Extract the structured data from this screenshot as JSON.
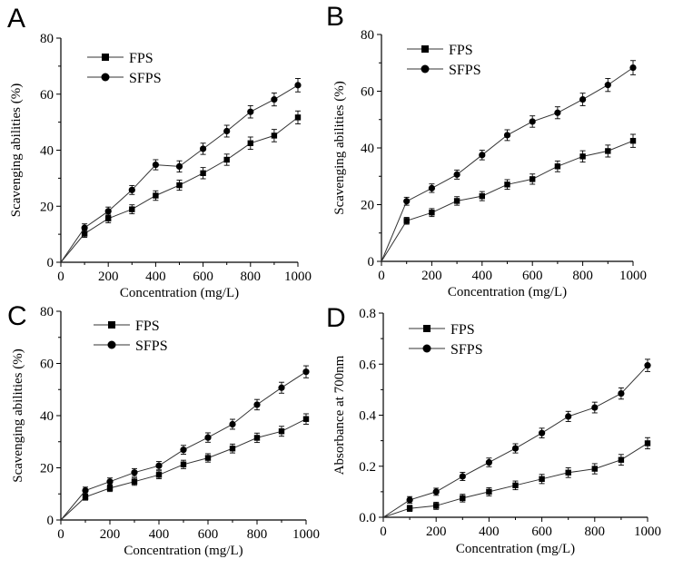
{
  "chart_data": [
    {
      "type": "line",
      "panel": "A",
      "title": "",
      "xlabel": "Concentration (mg/L)",
      "ylabel": "Scavenging abilities (%)",
      "xlim": [
        0,
        1000
      ],
      "ylim": [
        0,
        80
      ],
      "xticks": [
        0,
        200,
        400,
        600,
        800,
        1000
      ],
      "yticks": [
        0,
        20,
        40,
        60,
        80
      ],
      "x": [
        0,
        100,
        200,
        300,
        400,
        500,
        600,
        700,
        800,
        900,
        1000
      ],
      "series": [
        {
          "name": "FPS",
          "marker": "square",
          "values": [
            0,
            10.2,
            15.6,
            18.9,
            23.8,
            27.5,
            31.8,
            36.6,
            42.5,
            45.2,
            51.7
          ],
          "errors": [
            0,
            1.3,
            1.5,
            1.6,
            1.7,
            1.8,
            2.0,
            2.0,
            2.2,
            2.2,
            2.3
          ]
        },
        {
          "name": "SFPS",
          "marker": "circle",
          "values": [
            0,
            12.3,
            18.2,
            25.8,
            34.8,
            34.2,
            40.5,
            46.8,
            53.7,
            58.1,
            63.2
          ],
          "errors": [
            0,
            1.4,
            1.5,
            1.6,
            1.8,
            2.0,
            2.0,
            2.1,
            2.2,
            2.3,
            2.4
          ]
        }
      ],
      "legend": "top-left",
      "grid": false
    },
    {
      "type": "line",
      "panel": "B",
      "title": "",
      "xlabel": "Concentration (mg/L)",
      "ylabel": "Scavenging abilities (%)",
      "xlim": [
        0,
        1000
      ],
      "ylim": [
        0,
        80
      ],
      "xticks": [
        0,
        200,
        400,
        600,
        800,
        1000
      ],
      "yticks": [
        0,
        20,
        40,
        60,
        80
      ],
      "x": [
        0,
        100,
        200,
        300,
        400,
        500,
        600,
        700,
        800,
        900,
        1000
      ],
      "series": [
        {
          "name": "FPS",
          "marker": "square",
          "values": [
            0,
            14.3,
            17.2,
            21.3,
            23.0,
            27.1,
            29.0,
            33.5,
            37.0,
            38.9,
            42.5
          ],
          "errors": [
            0,
            1.2,
            1.4,
            1.5,
            1.6,
            1.7,
            1.8,
            1.9,
            2.0,
            2.1,
            2.3
          ]
        },
        {
          "name": "SFPS",
          "marker": "circle",
          "values": [
            0,
            21.2,
            25.8,
            30.6,
            37.5,
            44.5,
            49.3,
            52.4,
            57.1,
            62.2,
            68.3
          ],
          "errors": [
            0,
            1.4,
            1.5,
            1.6,
            1.7,
            1.9,
            2.0,
            2.1,
            2.2,
            2.3,
            2.5
          ]
        }
      ],
      "legend": "top-left",
      "grid": false
    },
    {
      "type": "line",
      "panel": "C",
      "title": "",
      "xlabel": "Concentration (mg/L)",
      "ylabel": "Scavenging abilities (%)",
      "xlim": [
        0,
        1000
      ],
      "ylim": [
        0,
        80
      ],
      "xticks": [
        0,
        200,
        400,
        600,
        800,
        1000
      ],
      "yticks": [
        0,
        20,
        40,
        60,
        80
      ],
      "x": [
        0,
        100,
        200,
        300,
        400,
        500,
        600,
        700,
        800,
        900,
        1000
      ],
      "series": [
        {
          "name": "FPS",
          "marker": "square",
          "values": [
            0,
            8.8,
            12.2,
            14.7,
            17.3,
            21.3,
            23.8,
            27.4,
            31.5,
            34.0,
            38.7
          ],
          "errors": [
            0,
            1.2,
            1.3,
            1.4,
            1.5,
            1.6,
            1.6,
            1.7,
            1.8,
            1.9,
            2.0
          ]
        },
        {
          "name": "SFPS",
          "marker": "circle",
          "values": [
            0,
            11.3,
            14.7,
            18.2,
            20.8,
            26.9,
            31.6,
            36.7,
            44.2,
            50.7,
            56.8
          ],
          "errors": [
            0,
            1.3,
            1.4,
            1.5,
            1.6,
            1.7,
            1.8,
            1.9,
            2.0,
            2.1,
            2.3
          ]
        }
      ],
      "legend": "top-left",
      "grid": false
    },
    {
      "type": "line",
      "panel": "D",
      "title": "",
      "xlabel": "Concentration (mg/L)",
      "ylabel": "Absorbance at 700nm",
      "xlim": [
        0,
        1000
      ],
      "ylim": [
        0,
        0.8
      ],
      "xticks": [
        0,
        200,
        400,
        600,
        800,
        1000
      ],
      "yticks": [
        0.0,
        0.2,
        0.4,
        0.6,
        0.8
      ],
      "ytick_decimals": 1,
      "x": [
        0,
        100,
        200,
        300,
        400,
        500,
        600,
        700,
        800,
        900,
        1000
      ],
      "series": [
        {
          "name": "FPS",
          "marker": "square",
          "values": [
            0,
            0.035,
            0.045,
            0.075,
            0.1,
            0.125,
            0.15,
            0.175,
            0.19,
            0.225,
            0.29
          ],
          "errors": [
            0,
            0.012,
            0.014,
            0.015,
            0.016,
            0.017,
            0.018,
            0.019,
            0.02,
            0.021,
            0.022
          ]
        },
        {
          "name": "SFPS",
          "marker": "circle",
          "values": [
            0,
            0.068,
            0.1,
            0.16,
            0.215,
            0.27,
            0.33,
            0.395,
            0.43,
            0.485,
            0.595
          ],
          "errors": [
            0,
            0.013,
            0.014,
            0.016,
            0.017,
            0.018,
            0.019,
            0.02,
            0.021,
            0.022,
            0.024
          ]
        }
      ],
      "legend": "top-left",
      "grid": false
    }
  ]
}
